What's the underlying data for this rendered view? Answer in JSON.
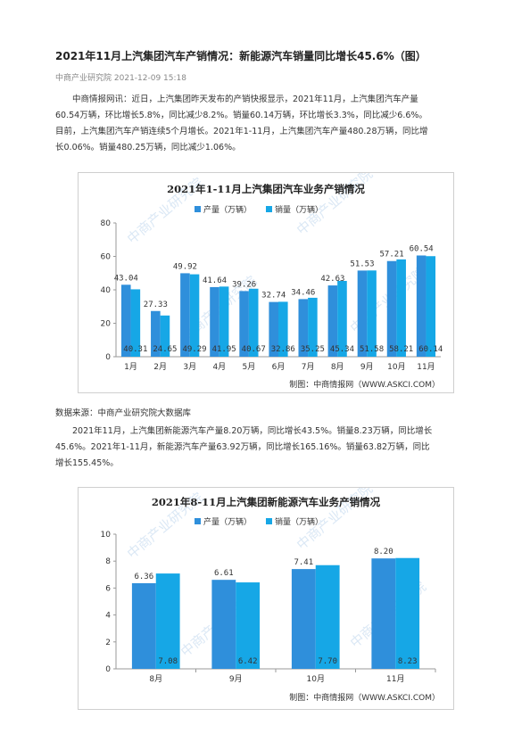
{
  "article": {
    "title": "2021年11月上汽集团汽车产销情况：新能源汽车销量同比增长45.6%（图）",
    "source": "中商产业研究院",
    "datetime": "2021-12-09 15:18",
    "para1_lines": [
      "中商情报网讯：近日，上汽集团昨天发布的产销快报显示，2021年11月，上汽集团汽车产量",
      "60.54万辆，环比增长5.8%，同比减少8.2%。销量60.14万辆，环比增长3.3%，同比减少6.6%。",
      "目前，上汽集团汽车产销连续5个月增长。2021年1-11月，上汽集团汽车产量480.28万辆，同比增",
      "长0.06%。销量480.25万辆，同比减少1.06%。"
    ],
    "data_source": "数据来源：中商产业研究院大数据库",
    "para2_lines": [
      "2021年11月，上汽集团新能源汽车产量8.20万辆，同比增长43.5%。销量8.23万辆，同比增长",
      "45.6%。2021年1-11月，新能源汽车产量63.92万辆，同比增长165.16%。销量63.82万辆，同比",
      "增长155.45%。"
    ]
  },
  "watermark": "中商产业研究院",
  "chart_data": [
    {
      "type": "bar",
      "title": "2021年1-11月上汽集团汽车业务产销情况",
      "categories": [
        "1月",
        "2月",
        "3月",
        "4月",
        "5月",
        "6月",
        "7月",
        "8月",
        "9月",
        "10月",
        "11月"
      ],
      "series": [
        {
          "name": "产量（万辆）",
          "color": "#2f8fdb",
          "values": [
            43.04,
            27.33,
            49.92,
            41.64,
            39.26,
            32.74,
            34.46,
            42.63,
            51.53,
            57.21,
            60.54
          ]
        },
        {
          "name": "销量（万辆）",
          "color": "#16a7e6",
          "values": [
            40.31,
            24.65,
            49.29,
            41.95,
            40.67,
            32.86,
            35.25,
            45.34,
            51.58,
            58.21,
            60.14
          ]
        }
      ],
      "ylim": [
        0,
        80
      ],
      "yticks": [
        0,
        20,
        40,
        60,
        80
      ],
      "grid": false,
      "legend": "top-center",
      "credit": "制图：中商情报网（WWW.ASKCI.COM）"
    },
    {
      "type": "bar",
      "title": "2021年8-11月上汽集团新能源汽车业务产销情况",
      "categories": [
        "8月",
        "9月",
        "10月",
        "11月"
      ],
      "series": [
        {
          "name": "产量（万辆）",
          "color": "#2f8fdb",
          "values": [
            6.36,
            6.61,
            7.41,
            8.2
          ]
        },
        {
          "name": "销量（万辆）",
          "color": "#16a7e6",
          "values": [
            7.08,
            6.42,
            7.7,
            8.23
          ]
        }
      ],
      "ylim": [
        0,
        10
      ],
      "yticks": [
        0,
        2,
        4,
        6,
        8,
        10
      ],
      "grid": false,
      "legend": "top-center",
      "credit": "制图：中商情报网（WWW.ASKCI.COM）"
    }
  ]
}
